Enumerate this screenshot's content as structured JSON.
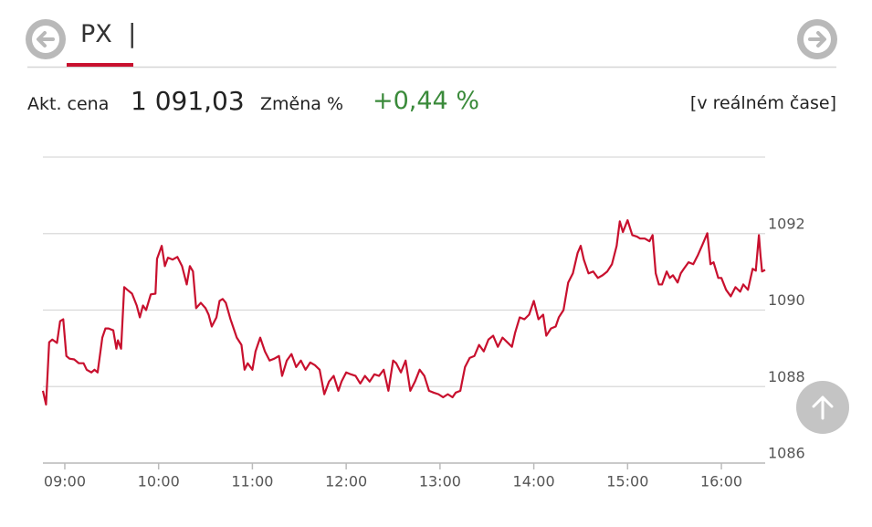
{
  "tab": {
    "label": "PX",
    "cursor": "|"
  },
  "quote": {
    "price_label": "Akt. cena",
    "price": "1 091,03",
    "change_label": "Změna %",
    "change": "+0,44 %",
    "mode": "[v reálném čase]"
  },
  "chart_data": {
    "type": "line",
    "color": "#c8102e",
    "grid": true,
    "xlim": [
      526,
      988
    ],
    "ylim": [
      1086,
      1094
    ],
    "xticks": [
      {
        "value": 540,
        "label": "09:00"
      },
      {
        "value": 600,
        "label": "10:00"
      },
      {
        "value": 660,
        "label": "11:00"
      },
      {
        "value": 720,
        "label": "12:00"
      },
      {
        "value": 780,
        "label": "13:00"
      },
      {
        "value": 840,
        "label": "14:00"
      },
      {
        "value": 900,
        "label": "15:00"
      },
      {
        "value": 960,
        "label": "16:00"
      }
    ],
    "yticks": [
      1086,
      1088,
      1090,
      1092
    ],
    "x": [
      526,
      528,
      530,
      532,
      535,
      537,
      539,
      541,
      543,
      546,
      549,
      552,
      554,
      557,
      559,
      561,
      564,
      566,
      568,
      571,
      573,
      574,
      576,
      578,
      580,
      583,
      586,
      588,
      590,
      592,
      595,
      598,
      599,
      602,
      604,
      606,
      609,
      612,
      615,
      618,
      620,
      622,
      624,
      627,
      630,
      632,
      634,
      637,
      639,
      641,
      643,
      646,
      648,
      650,
      653,
      655,
      657,
      660,
      662,
      665,
      668,
      671,
      674,
      677,
      679,
      682,
      685,
      688,
      691,
      694,
      697,
      700,
      703,
      706,
      709,
      712,
      715,
      717,
      720,
      723,
      726,
      729,
      732,
      735,
      738,
      741,
      744,
      747,
      750,
      752,
      755,
      758,
      761,
      764,
      767,
      770,
      773,
      776,
      779,
      782,
      785,
      788,
      790,
      793,
      796,
      799,
      802,
      805,
      808,
      811,
      814,
      817,
      820,
      823,
      826,
      828,
      831,
      834,
      837,
      840,
      843,
      846,
      848,
      851,
      854,
      856,
      859,
      862,
      865,
      868,
      870,
      872,
      875,
      878,
      881,
      884,
      887,
      890,
      893,
      895,
      897,
      900,
      903,
      906,
      908,
      911,
      914,
      916,
      918,
      920,
      922,
      925,
      927,
      929,
      932,
      934,
      936,
      939,
      942,
      945,
      948,
      951,
      953,
      955,
      958,
      960,
      963,
      966,
      969,
      972,
      974,
      977,
      980,
      982,
      984,
      985,
      986,
      988
    ],
    "values": [
      1087.89,
      1087.53,
      1089.16,
      1089.23,
      1089.14,
      1089.71,
      1089.76,
      1088.8,
      1088.73,
      1088.71,
      1088.61,
      1088.61,
      1088.44,
      1088.37,
      1088.44,
      1088.37,
      1089.28,
      1089.52,
      1089.52,
      1089.47,
      1088.99,
      1089.21,
      1088.99,
      1090.6,
      1090.53,
      1090.43,
      1090.12,
      1089.81,
      1090.12,
      1090.0,
      1090.41,
      1090.43,
      1091.34,
      1091.68,
      1091.15,
      1091.37,
      1091.32,
      1091.39,
      1091.15,
      1090.67,
      1091.15,
      1091.01,
      1090.05,
      1090.19,
      1090.05,
      1089.88,
      1089.57,
      1089.81,
      1090.24,
      1090.29,
      1090.19,
      1089.76,
      1089.52,
      1089.28,
      1089.09,
      1088.44,
      1088.61,
      1088.44,
      1088.92,
      1089.28,
      1088.92,
      1088.68,
      1088.73,
      1088.8,
      1088.28,
      1088.68,
      1088.85,
      1088.51,
      1088.68,
      1088.44,
      1088.63,
      1088.56,
      1088.44,
      1087.8,
      1088.13,
      1088.28,
      1087.89,
      1088.13,
      1088.37,
      1088.32,
      1088.28,
      1088.08,
      1088.28,
      1088.13,
      1088.32,
      1088.28,
      1088.44,
      1087.89,
      1088.68,
      1088.61,
      1088.37,
      1088.68,
      1087.89,
      1088.13,
      1088.44,
      1088.28,
      1087.89,
      1087.84,
      1087.8,
      1087.72,
      1087.8,
      1087.72,
      1087.84,
      1087.89,
      1088.51,
      1088.75,
      1088.8,
      1089.09,
      1088.92,
      1089.23,
      1089.33,
      1089.04,
      1089.28,
      1089.16,
      1089.04,
      1089.4,
      1089.81,
      1089.76,
      1089.88,
      1090.24,
      1089.76,
      1089.88,
      1089.33,
      1089.52,
      1089.57,
      1089.81,
      1090.0,
      1090.72,
      1090.96,
      1091.49,
      1091.68,
      1091.32,
      1090.96,
      1091.01,
      1090.84,
      1090.91,
      1091.01,
      1091.2,
      1091.68,
      1092.32,
      1092.04,
      1092.35,
      1091.96,
      1091.92,
      1091.87,
      1091.87,
      1091.8,
      1091.96,
      1090.96,
      1090.67,
      1090.67,
      1091.01,
      1090.84,
      1090.91,
      1090.72,
      1090.96,
      1091.08,
      1091.25,
      1091.2,
      1091.44,
      1091.72,
      1092.01,
      1091.2,
      1091.25,
      1090.84,
      1090.84,
      1090.53,
      1090.36,
      1090.6,
      1090.48,
      1090.67,
      1090.53,
      1091.08,
      1091.03,
      1091.96,
      1091.44,
      1091.01,
      1091.05
    ]
  }
}
